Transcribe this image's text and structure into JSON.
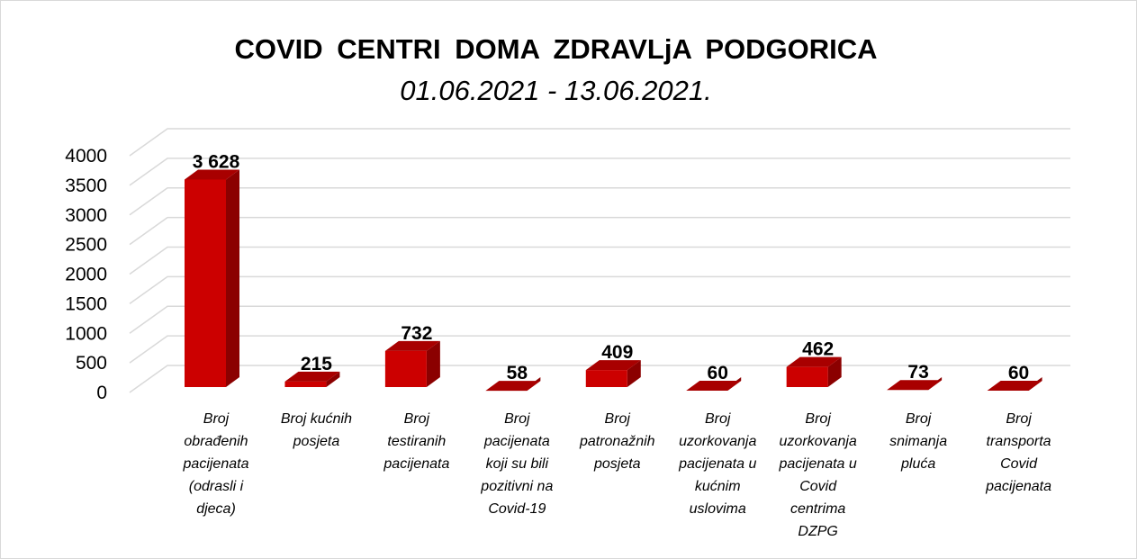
{
  "title": "COVID  CENTRI  DOMA  ZDRAVLjA  PODGORICA",
  "subtitle": "01.06.2021 - 13.06.2021.",
  "colors": {
    "bar_front": "#cc0000",
    "bar_side": "#8b0000",
    "bar_top": "#a80000",
    "gridline": "#d9d9d9"
  },
  "chart_data": {
    "type": "bar",
    "title": "COVID  CENTRI  DOMA  ZDRAVLjA  PODGORICA",
    "subtitle": "01.06.2021 - 13.06.2021.",
    "categories": [
      "Broj obrađenih pacijenata (odrasli i djeca)",
      "Broj kućnih posjeta",
      "Broj testiranih pacijenata",
      "Broj pacijenata koji su bili pozitivni na Covid-19",
      "Broj patronažnih posjeta",
      "Broj uzorkovanja pacijenata u kućnim uslovima",
      "Broj uzorkovanja pacijenata u Covid centrima DZPG",
      "Broj snimanja pluća",
      "Broj transporta Covid pacijenata"
    ],
    "category_lines": [
      [
        "Broj",
        "obrađenih",
        "pacijenata",
        "(odrasli i",
        "djeca)"
      ],
      [
        "Broj kućnih",
        "posjeta"
      ],
      [
        "Broj",
        "testiranih",
        "pacijenata"
      ],
      [
        "Broj",
        "pacijenata",
        "koji su bili",
        "pozitivni na",
        "Covid-19"
      ],
      [
        "Broj",
        "patronažnih",
        "posjeta"
      ],
      [
        "Broj",
        "uzorkovanja",
        "pacijenata u",
        "kućnim",
        "uslovima"
      ],
      [
        "Broj",
        "uzorkovanja",
        "pacijenata u",
        "Covid",
        "centrima",
        "DZPG"
      ],
      [
        "Broj",
        "snimanja",
        "pluća"
      ],
      [
        "Broj",
        "transporta",
        "Covid",
        "pacijenata"
      ]
    ],
    "values": [
      3628,
      215,
      732,
      58,
      409,
      60,
      462,
      73,
      60
    ],
    "data_labels": [
      "3 628",
      "215",
      "732",
      "58",
      "409",
      "60",
      "462",
      "73",
      "60"
    ],
    "y_ticks": [
      0,
      500,
      1000,
      1500,
      2000,
      2500,
      3000,
      3500,
      4000
    ],
    "ylim": [
      0,
      4000
    ],
    "grid": true,
    "legend": "none",
    "style": "3d-column"
  }
}
